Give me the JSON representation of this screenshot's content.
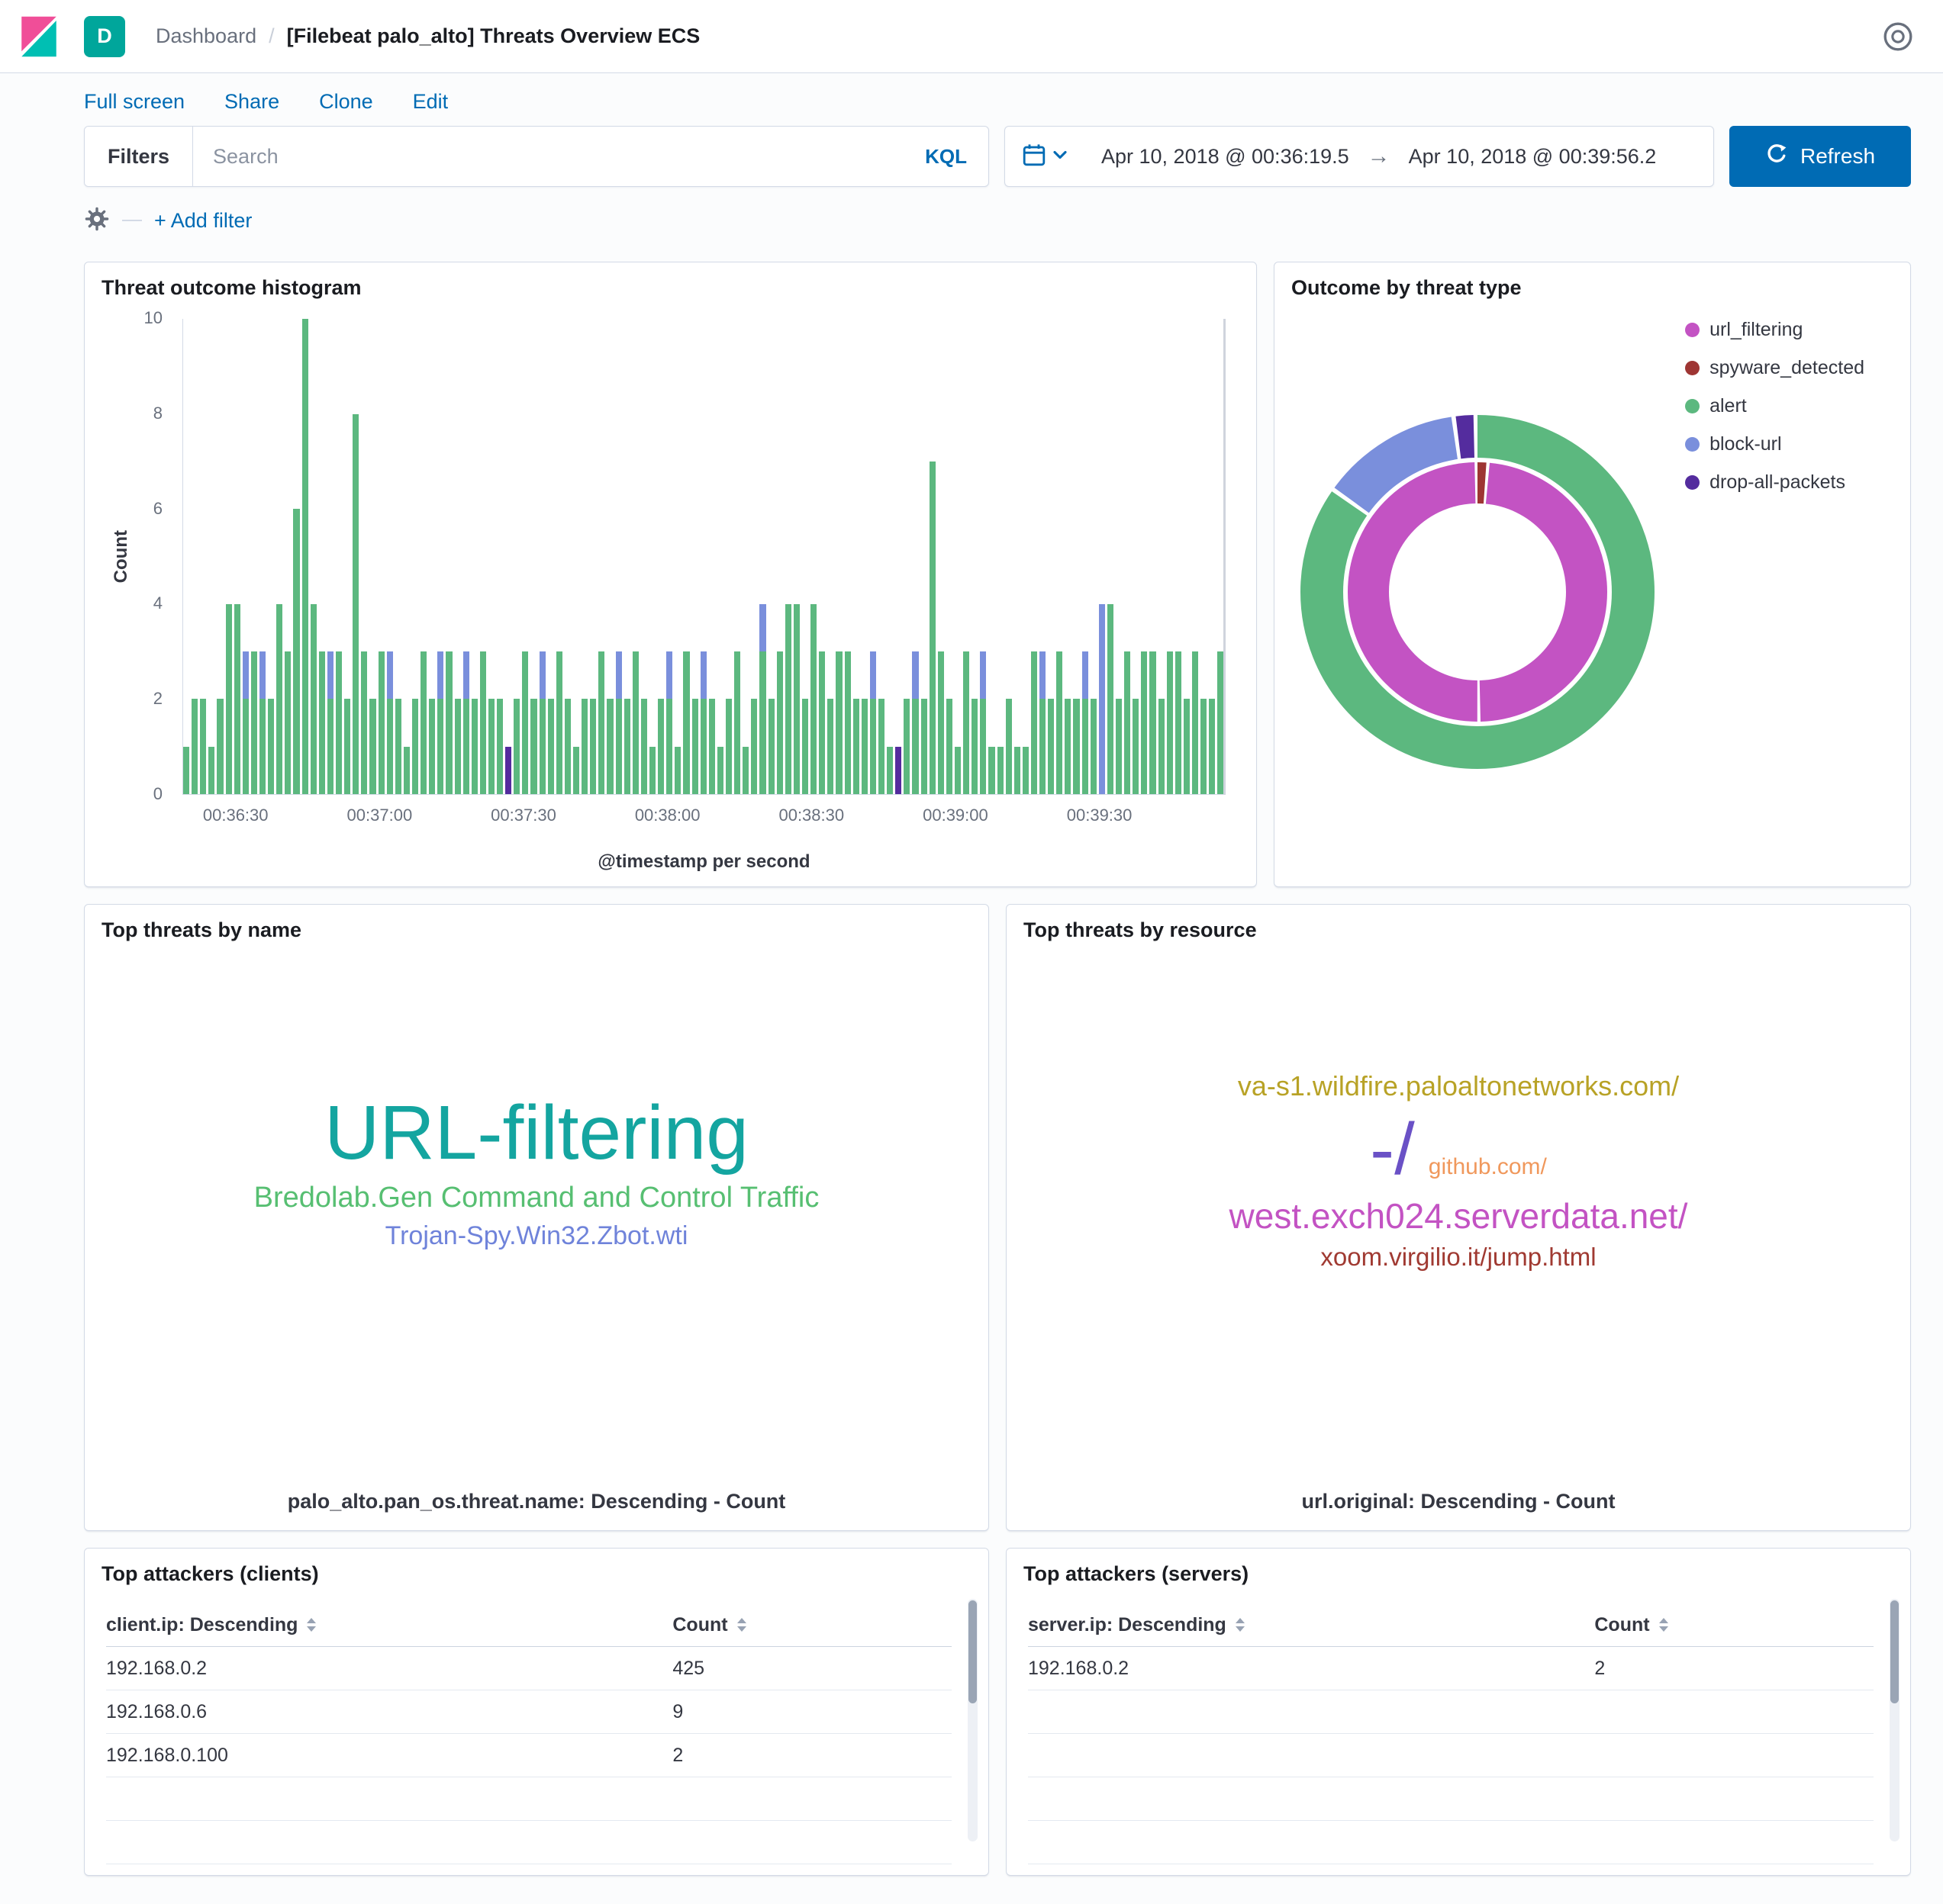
{
  "palette": {
    "primary_blue": "#006BB4",
    "logo_pink": "#F04E98",
    "logo_teal": "#00BFB3",
    "avatar_teal": "#00a69b",
    "text_dark": "#343741",
    "text_muted": "#69707D",
    "border": "#D3DAE6"
  },
  "header": {
    "breadcrumb_section": "Dashboard",
    "breadcrumb_separator": "/",
    "title": "[Filebeat palo_alto] Threats Overview ECS",
    "avatar_label": "D"
  },
  "toolbar": {
    "links": [
      "Full screen",
      "Share",
      "Clone",
      "Edit"
    ]
  },
  "filter_bar": {
    "filters_label": "Filters",
    "search_placeholder": "Search",
    "kql_label": "KQL",
    "date_from": "Apr 10, 2018 @ 00:36:19.5",
    "date_separator": "→",
    "date_to": "Apr 10, 2018 @ 00:39:56.2",
    "refresh_label": "Refresh",
    "add_filter_label": "+ Add filter"
  },
  "chart_data": [
    {
      "type": "bar",
      "title": "Threat outcome histogram",
      "stacked": true,
      "xlabel": "@timestamp per second",
      "ylabel": "Count",
      "ylim": [
        0,
        10
      ],
      "yticks": [
        0,
        2,
        4,
        6,
        8,
        10
      ],
      "xticks": [
        {
          "label": "00:36:30",
          "pos": 0.051
        },
        {
          "label": "00:37:00",
          "pos": 0.189
        },
        {
          "label": "00:37:30",
          "pos": 0.327
        },
        {
          "label": "00:38:00",
          "pos": 0.465
        },
        {
          "label": "00:38:30",
          "pos": 0.603
        },
        {
          "label": "00:39:00",
          "pos": 0.741
        },
        {
          "label": "00:39:30",
          "pos": 0.879
        }
      ],
      "colors": {
        "alert": "#5cb87f",
        "block_url": "#7a8fdc",
        "drop_all_packets": "#542c9e"
      },
      "series_note": "each bar = [alert, block-url, drop-all-packets] counts per second",
      "bars": [
        [
          1,
          0,
          0
        ],
        [
          2,
          0,
          0
        ],
        [
          2,
          0,
          0
        ],
        [
          1,
          0,
          0
        ],
        [
          2,
          0,
          0
        ],
        [
          4,
          0,
          0
        ],
        [
          4,
          0,
          0
        ],
        [
          2,
          1,
          0
        ],
        [
          3,
          0,
          0
        ],
        [
          2,
          1,
          0
        ],
        [
          2,
          0,
          0
        ],
        [
          4,
          0,
          0
        ],
        [
          3,
          0,
          0
        ],
        [
          6,
          0,
          0
        ],
        [
          10,
          0,
          0
        ],
        [
          4,
          0,
          0
        ],
        [
          3,
          0,
          0
        ],
        [
          2,
          1,
          0
        ],
        [
          3,
          0,
          0
        ],
        [
          2,
          0,
          0
        ],
        [
          8,
          0,
          0
        ],
        [
          3,
          0,
          0
        ],
        [
          2,
          0,
          0
        ],
        [
          3,
          0,
          0
        ],
        [
          2,
          1,
          0
        ],
        [
          2,
          0,
          0
        ],
        [
          1,
          0,
          0
        ],
        [
          2,
          0,
          0
        ],
        [
          3,
          0,
          0
        ],
        [
          2,
          0,
          0
        ],
        [
          2,
          1,
          0
        ],
        [
          3,
          0,
          0
        ],
        [
          2,
          0,
          0
        ],
        [
          2,
          1,
          0
        ],
        [
          2,
          0,
          0
        ],
        [
          3,
          0,
          0
        ],
        [
          2,
          0,
          0
        ],
        [
          2,
          0,
          0
        ],
        [
          0,
          0,
          1
        ],
        [
          2,
          0,
          0
        ],
        [
          3,
          0,
          0
        ],
        [
          2,
          0,
          0
        ],
        [
          2,
          1,
          0
        ],
        [
          2,
          0,
          0
        ],
        [
          3,
          0,
          0
        ],
        [
          2,
          0,
          0
        ],
        [
          1,
          0,
          0
        ],
        [
          2,
          0,
          0
        ],
        [
          2,
          0,
          0
        ],
        [
          3,
          0,
          0
        ],
        [
          2,
          0,
          0
        ],
        [
          2,
          1,
          0
        ],
        [
          2,
          0,
          0
        ],
        [
          3,
          0,
          0
        ],
        [
          2,
          0,
          0
        ],
        [
          1,
          0,
          0
        ],
        [
          2,
          0,
          0
        ],
        [
          2,
          1,
          0
        ],
        [
          1,
          0,
          0
        ],
        [
          3,
          0,
          0
        ],
        [
          2,
          0,
          0
        ],
        [
          2,
          1,
          0
        ],
        [
          2,
          0,
          0
        ],
        [
          1,
          0,
          0
        ],
        [
          2,
          0,
          0
        ],
        [
          3,
          0,
          0
        ],
        [
          1,
          0,
          0
        ],
        [
          2,
          0,
          0
        ],
        [
          3,
          1,
          0
        ],
        [
          2,
          0,
          0
        ],
        [
          3,
          0,
          0
        ],
        [
          4,
          0,
          0
        ],
        [
          4,
          0,
          0
        ],
        [
          2,
          0,
          0
        ],
        [
          4,
          0,
          0
        ],
        [
          3,
          0,
          0
        ],
        [
          2,
          0,
          0
        ],
        [
          3,
          0,
          0
        ],
        [
          3,
          0,
          0
        ],
        [
          2,
          0,
          0
        ],
        [
          2,
          0,
          0
        ],
        [
          2,
          1,
          0
        ],
        [
          2,
          0,
          0
        ],
        [
          1,
          0,
          0
        ],
        [
          0,
          0,
          1
        ],
        [
          2,
          0,
          0
        ],
        [
          2,
          1,
          0
        ],
        [
          2,
          0,
          0
        ],
        [
          7,
          0,
          0
        ],
        [
          3,
          0,
          0
        ],
        [
          2,
          0,
          0
        ],
        [
          1,
          0,
          0
        ],
        [
          3,
          0,
          0
        ],
        [
          2,
          0,
          0
        ],
        [
          2,
          1,
          0
        ],
        [
          1,
          0,
          0
        ],
        [
          1,
          0,
          0
        ],
        [
          2,
          0,
          0
        ],
        [
          1,
          0,
          0
        ],
        [
          1,
          0,
          0
        ],
        [
          3,
          0,
          0
        ],
        [
          2,
          1,
          0
        ],
        [
          2,
          0,
          0
        ],
        [
          3,
          0,
          0
        ],
        [
          2,
          0,
          0
        ],
        [
          2,
          0,
          0
        ],
        [
          2,
          1,
          0
        ],
        [
          2,
          0,
          0
        ],
        [
          0,
          4,
          0
        ],
        [
          4,
          0,
          0
        ],
        [
          2,
          0,
          0
        ],
        [
          3,
          0,
          0
        ],
        [
          2,
          0,
          0
        ],
        [
          3,
          0,
          0
        ],
        [
          3,
          0,
          0
        ],
        [
          2,
          0,
          0
        ],
        [
          3,
          0,
          0
        ],
        [
          3,
          0,
          0
        ],
        [
          2,
          0,
          0
        ],
        [
          3,
          0,
          0
        ],
        [
          2,
          0,
          0
        ],
        [
          2,
          0,
          0
        ],
        [
          3,
          0,
          0
        ]
      ]
    },
    {
      "type": "pie",
      "title": "Outcome by threat type",
      "legend": [
        {
          "label": "url_filtering",
          "color": "#c353c3"
        },
        {
          "label": "spyware_detected",
          "color": "#9e3533"
        },
        {
          "label": "alert",
          "color": "#5cb87f"
        },
        {
          "label": "block-url",
          "color": "#7a8fdc"
        },
        {
          "label": "drop-all-packets",
          "color": "#542c9e"
        }
      ],
      "outer_ring": [
        {
          "label": "alert",
          "value": 85
        },
        {
          "label": "block-url",
          "value": 13
        },
        {
          "label": "drop-all-packets",
          "value": 2
        }
      ],
      "inner_ring": [
        {
          "label": "spyware_detected",
          "value": 1.5
        },
        {
          "label": "url_filtering",
          "value": 48.5
        },
        {
          "label": "url_filtering",
          "value": 50
        }
      ]
    },
    {
      "type": "tagcloud",
      "title": "Top threats by name",
      "caption": "palo_alto.pan_os.threat.name: Descending - Count",
      "lines": [
        [
          {
            "text": "URL-filtering",
            "color": "#14a5a0",
            "size": 100
          }
        ],
        [
          {
            "text": "Bredolab.Gen Command and Control Traffic",
            "color": "#57bf72",
            "size": 38
          }
        ],
        [
          {
            "text": "Trojan-Spy.Win32.Zbot.wti",
            "color": "#6f83da",
            "size": 34
          }
        ]
      ]
    },
    {
      "type": "tagcloud",
      "title": "Top threats by resource",
      "caption": "url.original: Descending - Count",
      "lines": [
        [
          {
            "text": "va-s1.wildfire.paloaltonetworks.com/",
            "color": "#b8a226",
            "size": 36
          }
        ],
        [
          {
            "text": "-/",
            "color": "#6a51c6",
            "size": 96
          },
          {
            "text": "github.com/",
            "color": "#f0985c",
            "size": 30
          }
        ],
        [
          {
            "text": "west.exch024.serverdata.net/",
            "color": "#c353c3",
            "size": 46
          }
        ],
        [
          {
            "text": "xoom.virgilio.it/jump.html",
            "color": "#a03a32",
            "size": 33
          }
        ]
      ]
    },
    {
      "type": "table",
      "title": "Top attackers (clients)",
      "columns": [
        "client.ip: Descending",
        "Count"
      ],
      "rows": [
        [
          "192.168.0.2",
          "425"
        ],
        [
          "192.168.0.6",
          "9"
        ],
        [
          "192.168.0.100",
          "2"
        ]
      ],
      "empty_rows": 2
    },
    {
      "type": "table",
      "title": "Top attackers (servers)",
      "columns": [
        "server.ip: Descending",
        "Count"
      ],
      "rows": [
        [
          "192.168.0.2",
          "2"
        ]
      ],
      "empty_rows": 4
    }
  ]
}
